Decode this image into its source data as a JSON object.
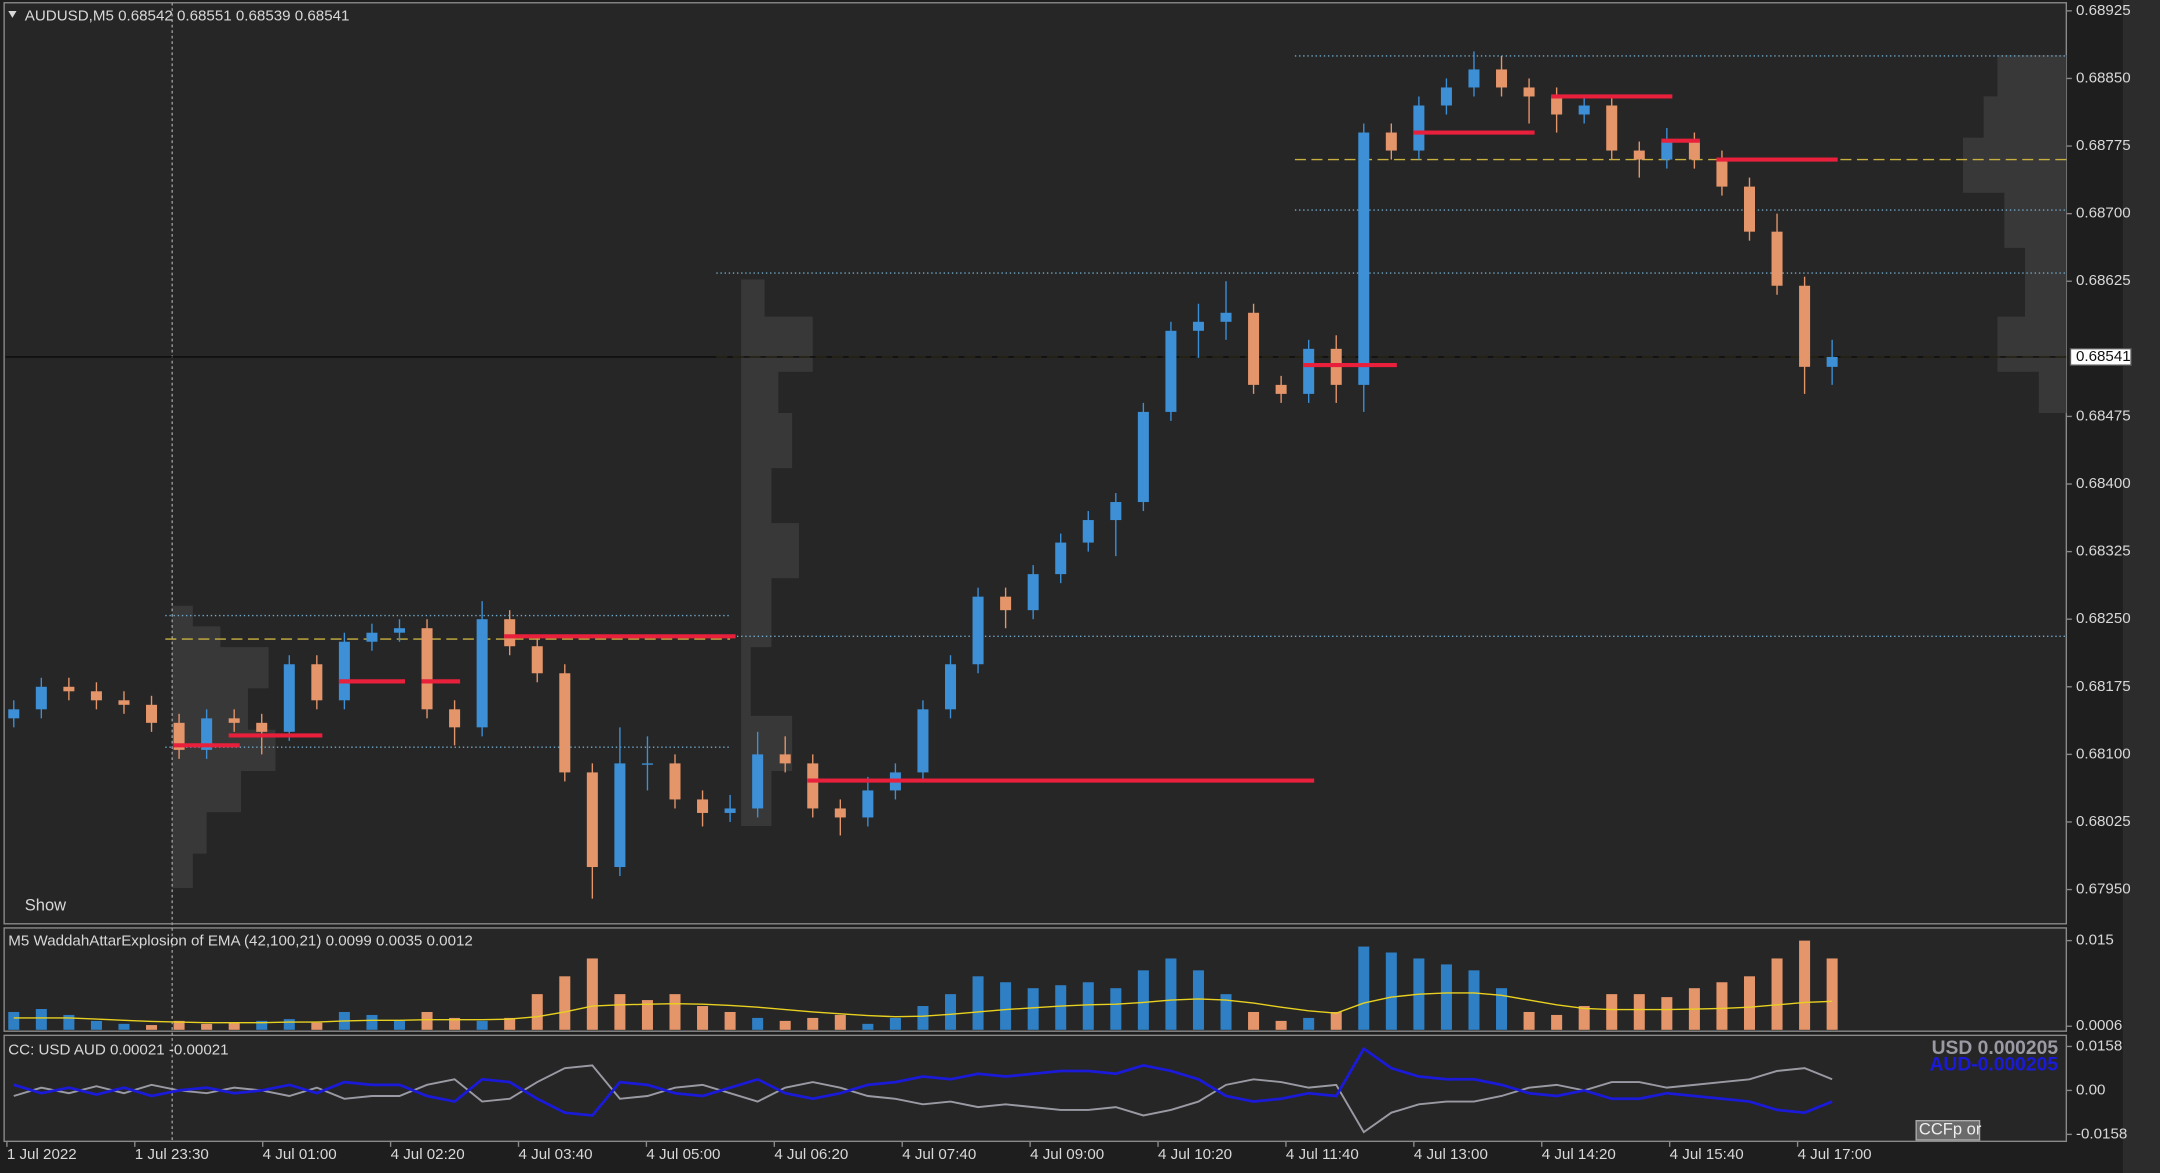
{
  "chart_data": [
    {
      "type": "candlestick",
      "title": "AUDUSD,M5  0.68542 0.68551 0.68539 0.68541",
      "up_color": "#3d8fd6",
      "down_color": "#e5956a",
      "ohlc": [
        [
          0.6814,
          0.6816,
          0.6813,
          0.6815
        ],
        [
          0.6815,
          0.68185,
          0.6814,
          0.68175
        ],
        [
          0.68175,
          0.68185,
          0.6816,
          0.6817
        ],
        [
          0.6817,
          0.6818,
          0.6815,
          0.6816
        ],
        [
          0.6816,
          0.6817,
          0.68145,
          0.68155
        ],
        [
          0.68155,
          0.68165,
          0.68125,
          0.68135
        ],
        [
          0.68135,
          0.68145,
          0.68095,
          0.68105
        ],
        [
          0.68105,
          0.6815,
          0.68095,
          0.6814
        ],
        [
          0.6814,
          0.6815,
          0.68125,
          0.68135
        ],
        [
          0.68135,
          0.68145,
          0.681,
          0.68125
        ],
        [
          0.68125,
          0.6821,
          0.68115,
          0.682
        ],
        [
          0.682,
          0.6821,
          0.6815,
          0.6816
        ],
        [
          0.6816,
          0.68235,
          0.6815,
          0.68225
        ],
        [
          0.68225,
          0.68245,
          0.68215,
          0.68235
        ],
        [
          0.68235,
          0.6825,
          0.68225,
          0.6824
        ],
        [
          0.6824,
          0.6825,
          0.6814,
          0.6815
        ],
        [
          0.6815,
          0.6816,
          0.6811,
          0.6813
        ],
        [
          0.6813,
          0.6827,
          0.6812,
          0.6825
        ],
        [
          0.6825,
          0.6826,
          0.6821,
          0.6822
        ],
        [
          0.6822,
          0.6823,
          0.6818,
          0.6819
        ],
        [
          0.6819,
          0.682,
          0.6807,
          0.6808
        ],
        [
          0.6808,
          0.6809,
          0.6794,
          0.67975
        ],
        [
          0.67975,
          0.6813,
          0.67965,
          0.6809
        ],
        [
          0.6809,
          0.6812,
          0.6806,
          0.6809
        ],
        [
          0.6809,
          0.681,
          0.6804,
          0.6805
        ],
        [
          0.6805,
          0.6806,
          0.6802,
          0.68035
        ],
        [
          0.68035,
          0.68055,
          0.68025,
          0.6804
        ],
        [
          0.6804,
          0.68125,
          0.6803,
          0.681
        ],
        [
          0.681,
          0.6812,
          0.6808,
          0.6809
        ],
        [
          0.6809,
          0.681,
          0.6803,
          0.6804
        ],
        [
          0.6804,
          0.6805,
          0.6801,
          0.6803
        ],
        [
          0.6803,
          0.68075,
          0.6802,
          0.6806
        ],
        [
          0.6806,
          0.6809,
          0.6805,
          0.6808
        ],
        [
          0.6808,
          0.6816,
          0.6807,
          0.6815
        ],
        [
          0.6815,
          0.6821,
          0.6814,
          0.682
        ],
        [
          0.682,
          0.68285,
          0.6819,
          0.68275
        ],
        [
          0.68275,
          0.68285,
          0.6824,
          0.6826
        ],
        [
          0.6826,
          0.6831,
          0.6825,
          0.683
        ],
        [
          0.683,
          0.68345,
          0.6829,
          0.68335
        ],
        [
          0.68335,
          0.6837,
          0.68325,
          0.6836
        ],
        [
          0.6836,
          0.6839,
          0.6832,
          0.6838
        ],
        [
          0.6838,
          0.6849,
          0.6837,
          0.6848
        ],
        [
          0.6848,
          0.6858,
          0.6847,
          0.6857
        ],
        [
          0.6857,
          0.686,
          0.6854,
          0.6858
        ],
        [
          0.6858,
          0.68625,
          0.6856,
          0.6859
        ],
        [
          0.6859,
          0.686,
          0.685,
          0.6851
        ],
        [
          0.6851,
          0.6852,
          0.6849,
          0.685
        ],
        [
          0.685,
          0.6856,
          0.6849,
          0.6855
        ],
        [
          0.6855,
          0.68565,
          0.6849,
          0.6851
        ],
        [
          0.6851,
          0.688,
          0.6848,
          0.6879
        ],
        [
          0.6879,
          0.688,
          0.6876,
          0.6877
        ],
        [
          0.6877,
          0.6883,
          0.6876,
          0.6882
        ],
        [
          0.6882,
          0.6885,
          0.6881,
          0.6884
        ],
        [
          0.6884,
          0.6888,
          0.6883,
          0.6886
        ],
        [
          0.6886,
          0.68875,
          0.6883,
          0.6884
        ],
        [
          0.6884,
          0.6885,
          0.688,
          0.6883
        ],
        [
          0.6883,
          0.6884,
          0.6879,
          0.6881
        ],
        [
          0.6881,
          0.6883,
          0.688,
          0.6882
        ],
        [
          0.6882,
          0.6883,
          0.6876,
          0.6877
        ],
        [
          0.6877,
          0.6878,
          0.6874,
          0.6876
        ],
        [
          0.6876,
          0.68795,
          0.6875,
          0.6878
        ],
        [
          0.6878,
          0.6879,
          0.6875,
          0.6876
        ],
        [
          0.6876,
          0.6877,
          0.6872,
          0.6873
        ],
        [
          0.6873,
          0.6874,
          0.6867,
          0.6868
        ],
        [
          0.6868,
          0.687,
          0.6861,
          0.6862
        ],
        [
          0.6862,
          0.6863,
          0.685,
          0.6853
        ],
        [
          0.6853,
          0.6856,
          0.6851,
          0.68541
        ]
      ],
      "level_color": "#e8203c",
      "levels": [
        {
          "price": 0.6811,
          "start": 6,
          "end": 8
        },
        {
          "price": 0.68121,
          "start": 8,
          "end": 11
        },
        {
          "price": 0.68181,
          "start": 12,
          "end": 14
        },
        {
          "price": 0.68181,
          "start": 15,
          "end": 16
        },
        {
          "price": 0.68231,
          "start": 18,
          "end": 26
        },
        {
          "price": 0.68071,
          "start": 29,
          "end": 47
        },
        {
          "price": 0.68532,
          "start": 47,
          "end": 50
        },
        {
          "price": 0.6879,
          "start": 51,
          "end": 55
        },
        {
          "price": 0.6883,
          "start": 56,
          "end": 60
        },
        {
          "price": 0.68781,
          "start": 60,
          "end": 61
        },
        {
          "price": 0.6876,
          "start": 62,
          "end": 66
        }
      ],
      "lines": [
        {
          "price": 0.68875,
          "start": 47,
          "style": "dotted",
          "color": "#6fa8c8"
        },
        {
          "price": 0.68704,
          "start": 47,
          "style": "dotted",
          "color": "#6fa8c8"
        },
        {
          "price": 0.68634,
          "start": 26,
          "style": "dotted",
          "color": "#6fa8c8"
        },
        {
          "price": 0.68231,
          "start": 26,
          "style": "dotted",
          "color": "#6fa8c8"
        },
        {
          "price": 0.68254,
          "start": 6,
          "end": 26,
          "style": "dotted",
          "color": "#6fa8c8"
        },
        {
          "price": 0.68108,
          "start": 6,
          "end": 26,
          "style": "dotted",
          "color": "#6fa8c8"
        },
        {
          "price": 0.6876,
          "start": 47,
          "style": "dashed",
          "color": "#c8b040"
        },
        {
          "price": 0.68541,
          "start": 26,
          "style": "dashed",
          "color": "#c8b040"
        },
        {
          "price": 0.68228,
          "start": 6,
          "end": 26,
          "style": "dashed",
          "color": "#c8b040"
        }
      ],
      "bid": 0.68541,
      "ylim": [
        0.67912,
        0.68934
      ],
      "yticks": [
        0.68925,
        {
          "value": 0.6885,
          "label": "0.68850"
        },
        0.68775,
        {
          "value": 0.687,
          "label": "0.68700"
        },
        0.68625,
        0.68475,
        {
          "value": 0.684,
          "label": "0.68400"
        },
        0.68325,
        {
          "value": 0.6825,
          "label": "0.68250"
        },
        0.68175,
        {
          "value": 0.681,
          "label": "0.68100"
        },
        0.68025,
        {
          "value": 0.6795,
          "label": "0.67950"
        }
      ],
      "button": "Show",
      "time_labels": [
        "1 Jul 2022",
        "1 Jul 23:30",
        "4 Jul 01:00",
        "4 Jul 02:20",
        "4 Jul 03:40",
        "4 Jul 05:00",
        "4 Jul 06:20",
        "4 Jul 07:40",
        "4 Jul 09:00",
        "4 Jul 10:20",
        "4 Jul 11:40",
        "4 Jul 13:00",
        "4 Jul 14:20",
        "4 Jul 15:40",
        "4 Jul 17:00"
      ]
    },
    {
      "type": "bar",
      "title": "M5 WaddahAttarExplosion of EMA (42,100,21) 0.0099 0.0035 0.0012",
      "values": [
        0.003,
        0.0035,
        0.0025,
        0.0015,
        0.001,
        0.0008,
        0.0015,
        0.001,
        0.0012,
        0.0015,
        0.0018,
        0.0012,
        0.003,
        0.0025,
        0.0015,
        0.003,
        0.002,
        0.0015,
        0.002,
        0.006,
        0.009,
        0.012,
        0.006,
        0.005,
        0.006,
        0.004,
        0.003,
        0.002,
        0.0015,
        0.002,
        0.0025,
        0.001,
        0.002,
        0.004,
        0.006,
        0.009,
        0.008,
        0.007,
        0.0075,
        0.008,
        0.007,
        0.01,
        0.012,
        0.01,
        0.006,
        0.003,
        0.0015,
        0.002,
        0.003,
        0.014,
        0.013,
        0.012,
        0.011,
        0.01,
        0.007,
        0.003,
        0.0025,
        0.004,
        0.006,
        0.006,
        0.0055,
        0.007,
        0.008,
        0.009,
        0.012,
        0.015,
        0.012
      ],
      "colors": [
        "#2f7fc4",
        "#2f7fc4",
        "#2f7fc4",
        "#2f7fc4",
        "#2f7fc4",
        "#e5956a",
        "#e5956a",
        "#e5956a",
        "#e5956a",
        "#2f7fc4",
        "#2f7fc4",
        "#e5956a",
        "#2f7fc4",
        "#2f7fc4",
        "#2f7fc4",
        "#e5956a",
        "#e5956a",
        "#2f7fc4",
        "#e5956a",
        "#e5956a",
        "#e5956a",
        "#e5956a",
        "#e5956a",
        "#e5956a",
        "#e5956a",
        "#e5956a",
        "#e5956a",
        "#2f7fc4",
        "#e5956a",
        "#e5956a",
        "#e5956a",
        "#2f7fc4",
        "#2f7fc4",
        "#2f7fc4",
        "#2f7fc4",
        "#2f7fc4",
        "#2f7fc4",
        "#2f7fc4",
        "#2f7fc4",
        "#2f7fc4",
        "#2f7fc4",
        "#2f7fc4",
        "#2f7fc4",
        "#2f7fc4",
        "#2f7fc4",
        "#e5956a",
        "#e5956a",
        "#2f7fc4",
        "#e5956a",
        "#2f7fc4",
        "#2f7fc4",
        "#2f7fc4",
        "#2f7fc4",
        "#2f7fc4",
        "#2f7fc4",
        "#e5956a",
        "#e5956a",
        "#e5956a",
        "#e5956a",
        "#e5956a",
        "#e5956a",
        "#e5956a",
        "#e5956a",
        "#e5956a",
        "#e5956a",
        "#e5956a",
        "#e5956a"
      ],
      "line": [
        0.002,
        0.002,
        0.002,
        0.0018,
        0.0016,
        0.0014,
        0.0013,
        0.0012,
        0.0012,
        0.0012,
        0.0013,
        0.0013,
        0.0015,
        0.0016,
        0.0016,
        0.0017,
        0.0017,
        0.0017,
        0.0018,
        0.0022,
        0.003,
        0.004,
        0.0042,
        0.0043,
        0.0044,
        0.0043,
        0.0041,
        0.0038,
        0.0034,
        0.003,
        0.0027,
        0.0024,
        0.0022,
        0.0023,
        0.0026,
        0.003,
        0.0034,
        0.0037,
        0.004,
        0.0042,
        0.0043,
        0.0046,
        0.005,
        0.0052,
        0.005,
        0.0045,
        0.0038,
        0.0032,
        0.0028,
        0.0045,
        0.0055,
        0.006,
        0.0062,
        0.0062,
        0.0058,
        0.005,
        0.0042,
        0.0036,
        0.0034,
        0.0034,
        0.0034,
        0.0035,
        0.0036,
        0.0038,
        0.0042,
        0.0046,
        0.0048
      ],
      "line_color": "#e8d020",
      "ylim": [
        0,
        0.0169
      ],
      "yticks": [
        0.015,
        0.0006
      ]
    },
    {
      "type": "line",
      "title": "CC:  USD AUD 0.00021 -0.00021",
      "series": [
        {
          "name": "USD",
          "label": "USD 0.000205",
          "color": "#9a9aa4",
          "values": [
            -0.002,
            0.001,
            -0.001,
            0.0015,
            -0.001,
            0.002,
            0,
            -0.001,
            0.001,
            0,
            -0.002,
            0.001,
            -0.003,
            -0.002,
            -0.002,
            0.002,
            0.004,
            -0.004,
            -0.003,
            0.003,
            0.008,
            0.009,
            -0.003,
            -0.002,
            0.001,
            0.002,
            -0.001,
            -0.004,
            0.001,
            0.003,
            0.001,
            -0.002,
            -0.003,
            -0.005,
            -0.004,
            -0.006,
            -0.005,
            -0.006,
            -0.007,
            -0.007,
            -0.006,
            -0.009,
            -0.007,
            -0.004,
            0.002,
            0.004,
            0.003,
            0.001,
            0.002,
            -0.015,
            -0.008,
            -0.005,
            -0.004,
            -0.004,
            -0.002,
            0.001,
            0.002,
            0,
            0.003,
            0.003,
            0.001,
            0.002,
            0.003,
            0.004,
            0.007,
            0.008,
            0.004
          ]
        },
        {
          "name": "AUD",
          "label": "AUD-0.000205",
          "color": "#1a1ad8",
          "values": [
            0.002,
            -0.001,
            0.001,
            -0.0015,
            0.001,
            -0.002,
            0,
            0.001,
            -0.001,
            0,
            0.002,
            -0.001,
            0.003,
            0.002,
            0.002,
            -0.002,
            -0.004,
            0.004,
            0.003,
            -0.003,
            -0.008,
            -0.009,
            0.003,
            0.002,
            -0.001,
            -0.002,
            0.001,
            0.004,
            -0.001,
            -0.003,
            -0.001,
            0.002,
            0.003,
            0.005,
            0.004,
            0.006,
            0.005,
            0.006,
            0.007,
            0.007,
            0.006,
            0.009,
            0.007,
            0.004,
            -0.002,
            -0.004,
            -0.003,
            -0.001,
            -0.002,
            0.015,
            0.008,
            0.005,
            0.004,
            0.004,
            0.002,
            -0.001,
            -0.002,
            0,
            -0.003,
            -0.003,
            -0.001,
            -0.002,
            -0.003,
            -0.004,
            -0.007,
            -0.008,
            -0.004
          ]
        }
      ],
      "ylim": [
        -0.0178,
        0.0198
      ],
      "yticks": [
        0.0158,
        {
          "value": 0,
          "label": "0.00"
        },
        -0.0158
      ],
      "button": "CCFp or"
    }
  ]
}
